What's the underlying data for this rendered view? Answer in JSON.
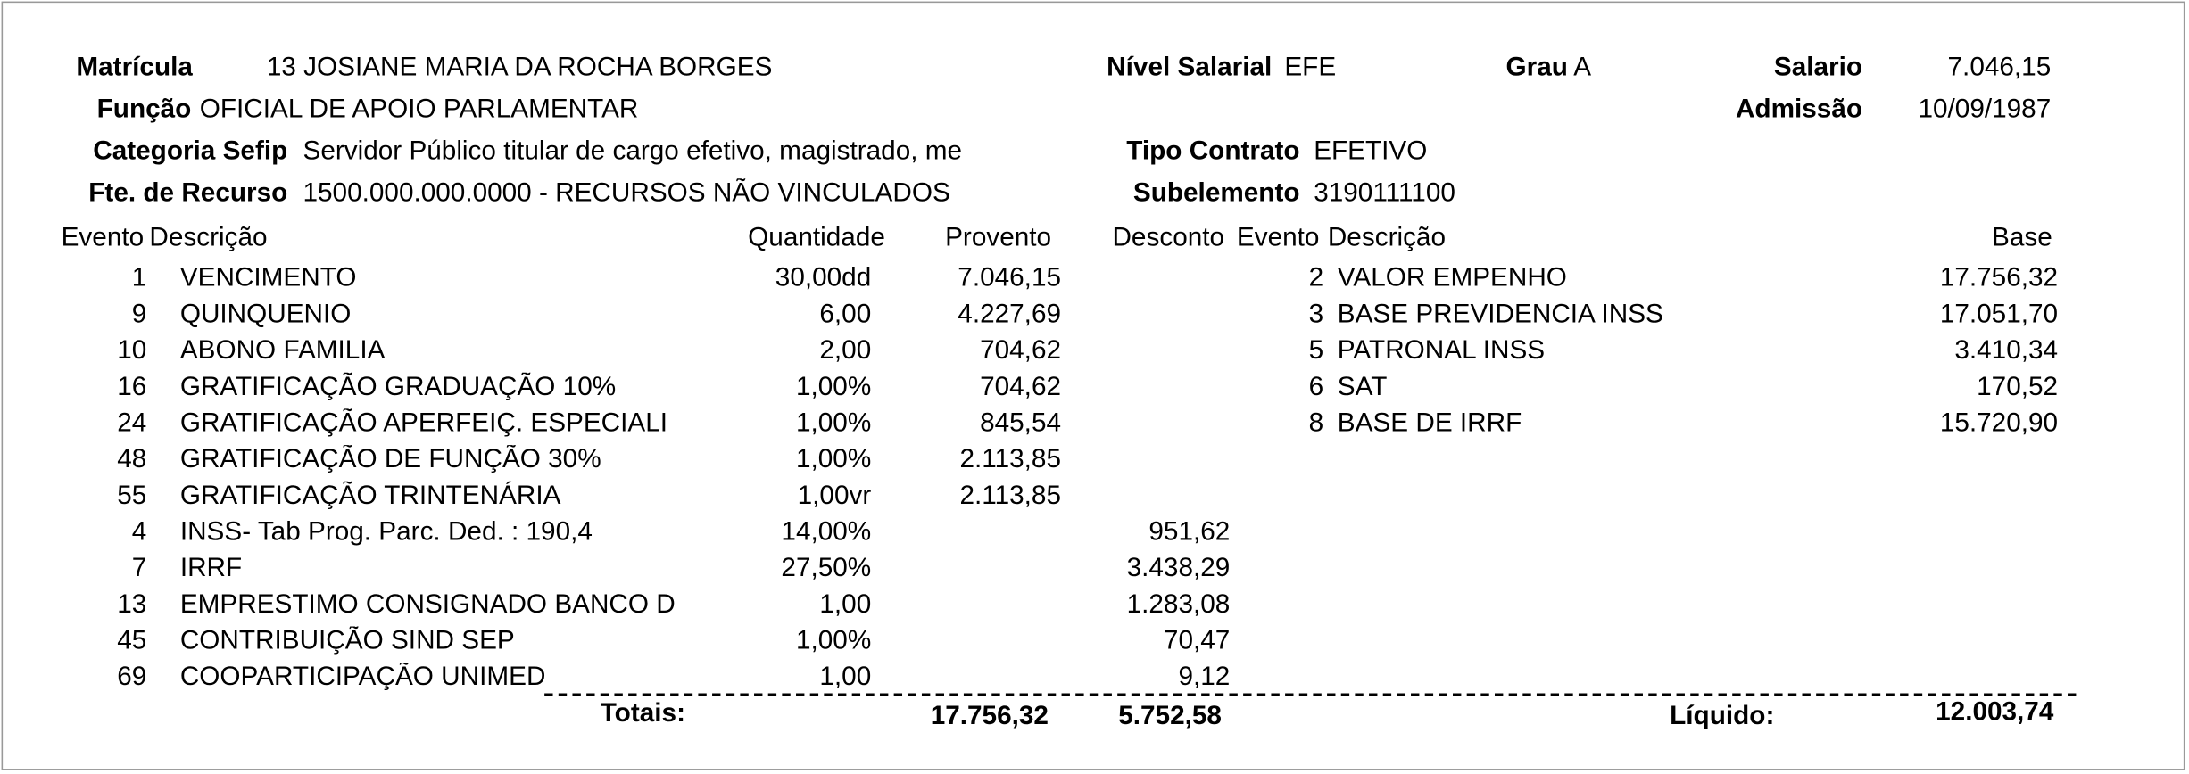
{
  "header": {
    "matricula": {
      "label": "Matrícula",
      "value": "13 JOSIANE MARIA DA ROCHA BORGES"
    },
    "nivel_salarial": {
      "label": "Nível Salarial",
      "value": "EFE"
    },
    "grau": {
      "label": "Grau",
      "value": "A"
    },
    "salario": {
      "label": "Salario",
      "value": "7.046,15"
    },
    "funcao": {
      "label": "Função",
      "value": "OFICIAL DE APOIO PARLAMENTAR"
    },
    "admissao": {
      "label": "Admissão",
      "value": "10/09/1987"
    },
    "categoria_sefip": {
      "label": "Categoria Sefip",
      "value": "Servidor Público titular de cargo efetivo, magistrado, me"
    },
    "tipo_contrato": {
      "label": "Tipo Contrato",
      "value": "EFETIVO"
    },
    "fonte_recurso": {
      "label": "Fte. de Recurso",
      "value": "1500.000.000.0000 - RECURSOS NÃO VINCULADOS"
    },
    "subelemento": {
      "label": "Subelemento",
      "value": "3190111100"
    }
  },
  "table": {
    "columns": [
      "Evento",
      "Descrição",
      "Quantidade",
      "Provento",
      "Desconto",
      "Evento",
      "Descrição",
      "Base"
    ],
    "rows": [
      {
        "evento": "1",
        "descricao": "VENCIMENTO",
        "quantidade": "30,00dd",
        "provento": "7.046,15"
      },
      {
        "evento": "9",
        "descricao": "QUINQUENIO",
        "quantidade": "6,00",
        "provento": "4.227,69"
      },
      {
        "evento": "10",
        "descricao": "ABONO FAMILIA",
        "quantidade": "2,00",
        "provento": "704,62"
      },
      {
        "evento": "16",
        "descricao": "GRATIFICAÇÃO GRADUAÇÃO 10%",
        "quantidade": "1,00%",
        "provento": "704,62"
      },
      {
        "evento": "24",
        "descricao": "GRATIFICAÇÃO APERFEIÇ. ESPECIALI",
        "quantidade": "1,00%",
        "provento": "845,54"
      },
      {
        "evento": "48",
        "descricao": "GRATIFICAÇÃO DE FUNÇÃO 30%",
        "quantidade": "1,00%",
        "provento": "2.113,85"
      },
      {
        "evento": "55",
        "descricao": "GRATIFICAÇÃO TRINTENÁRIA",
        "quantidade": "1,00vr",
        "provento": "2.113,85"
      },
      {
        "evento": "4",
        "descricao": "INSS- Tab Prog. Parc. Ded. : 190,4",
        "quantidade": "14,00%",
        "desconto": "951,62"
      },
      {
        "evento": "7",
        "descricao": "IRRF",
        "quantidade": "27,50%",
        "desconto": "3.438,29"
      },
      {
        "evento": "13",
        "descricao": "EMPRESTIMO CONSIGNADO BANCO D",
        "quantidade": "1,00",
        "desconto": "1.283,08"
      },
      {
        "evento": "45",
        "descricao": "CONTRIBUIÇÃO SIND SEP",
        "quantidade": "1,00%",
        "desconto": "70,47"
      },
      {
        "evento": "69",
        "descricao": "COOPARTICIPAÇÃO UNIMED",
        "quantidade": "1,00",
        "desconto": "9,12"
      }
    ],
    "base_rows": [
      {
        "evento": "2",
        "descricao": "VALOR EMPENHO",
        "base": "17.756,32"
      },
      {
        "evento": "3",
        "descricao": "BASE PREVIDENCIA INSS",
        "base": "17.051,70"
      },
      {
        "evento": "5",
        "descricao": "PATRONAL INSS",
        "base": "3.410,34"
      },
      {
        "evento": "6",
        "descricao": "SAT",
        "base": "170,52"
      },
      {
        "evento": "8",
        "descricao": "BASE DE IRRF",
        "base": "15.720,90"
      }
    ]
  },
  "totals": {
    "label": "Totais:",
    "provento": "17.756,32",
    "desconto": "5.752,58",
    "liquido_label": "Líquido:",
    "liquido": "12.003,74"
  }
}
